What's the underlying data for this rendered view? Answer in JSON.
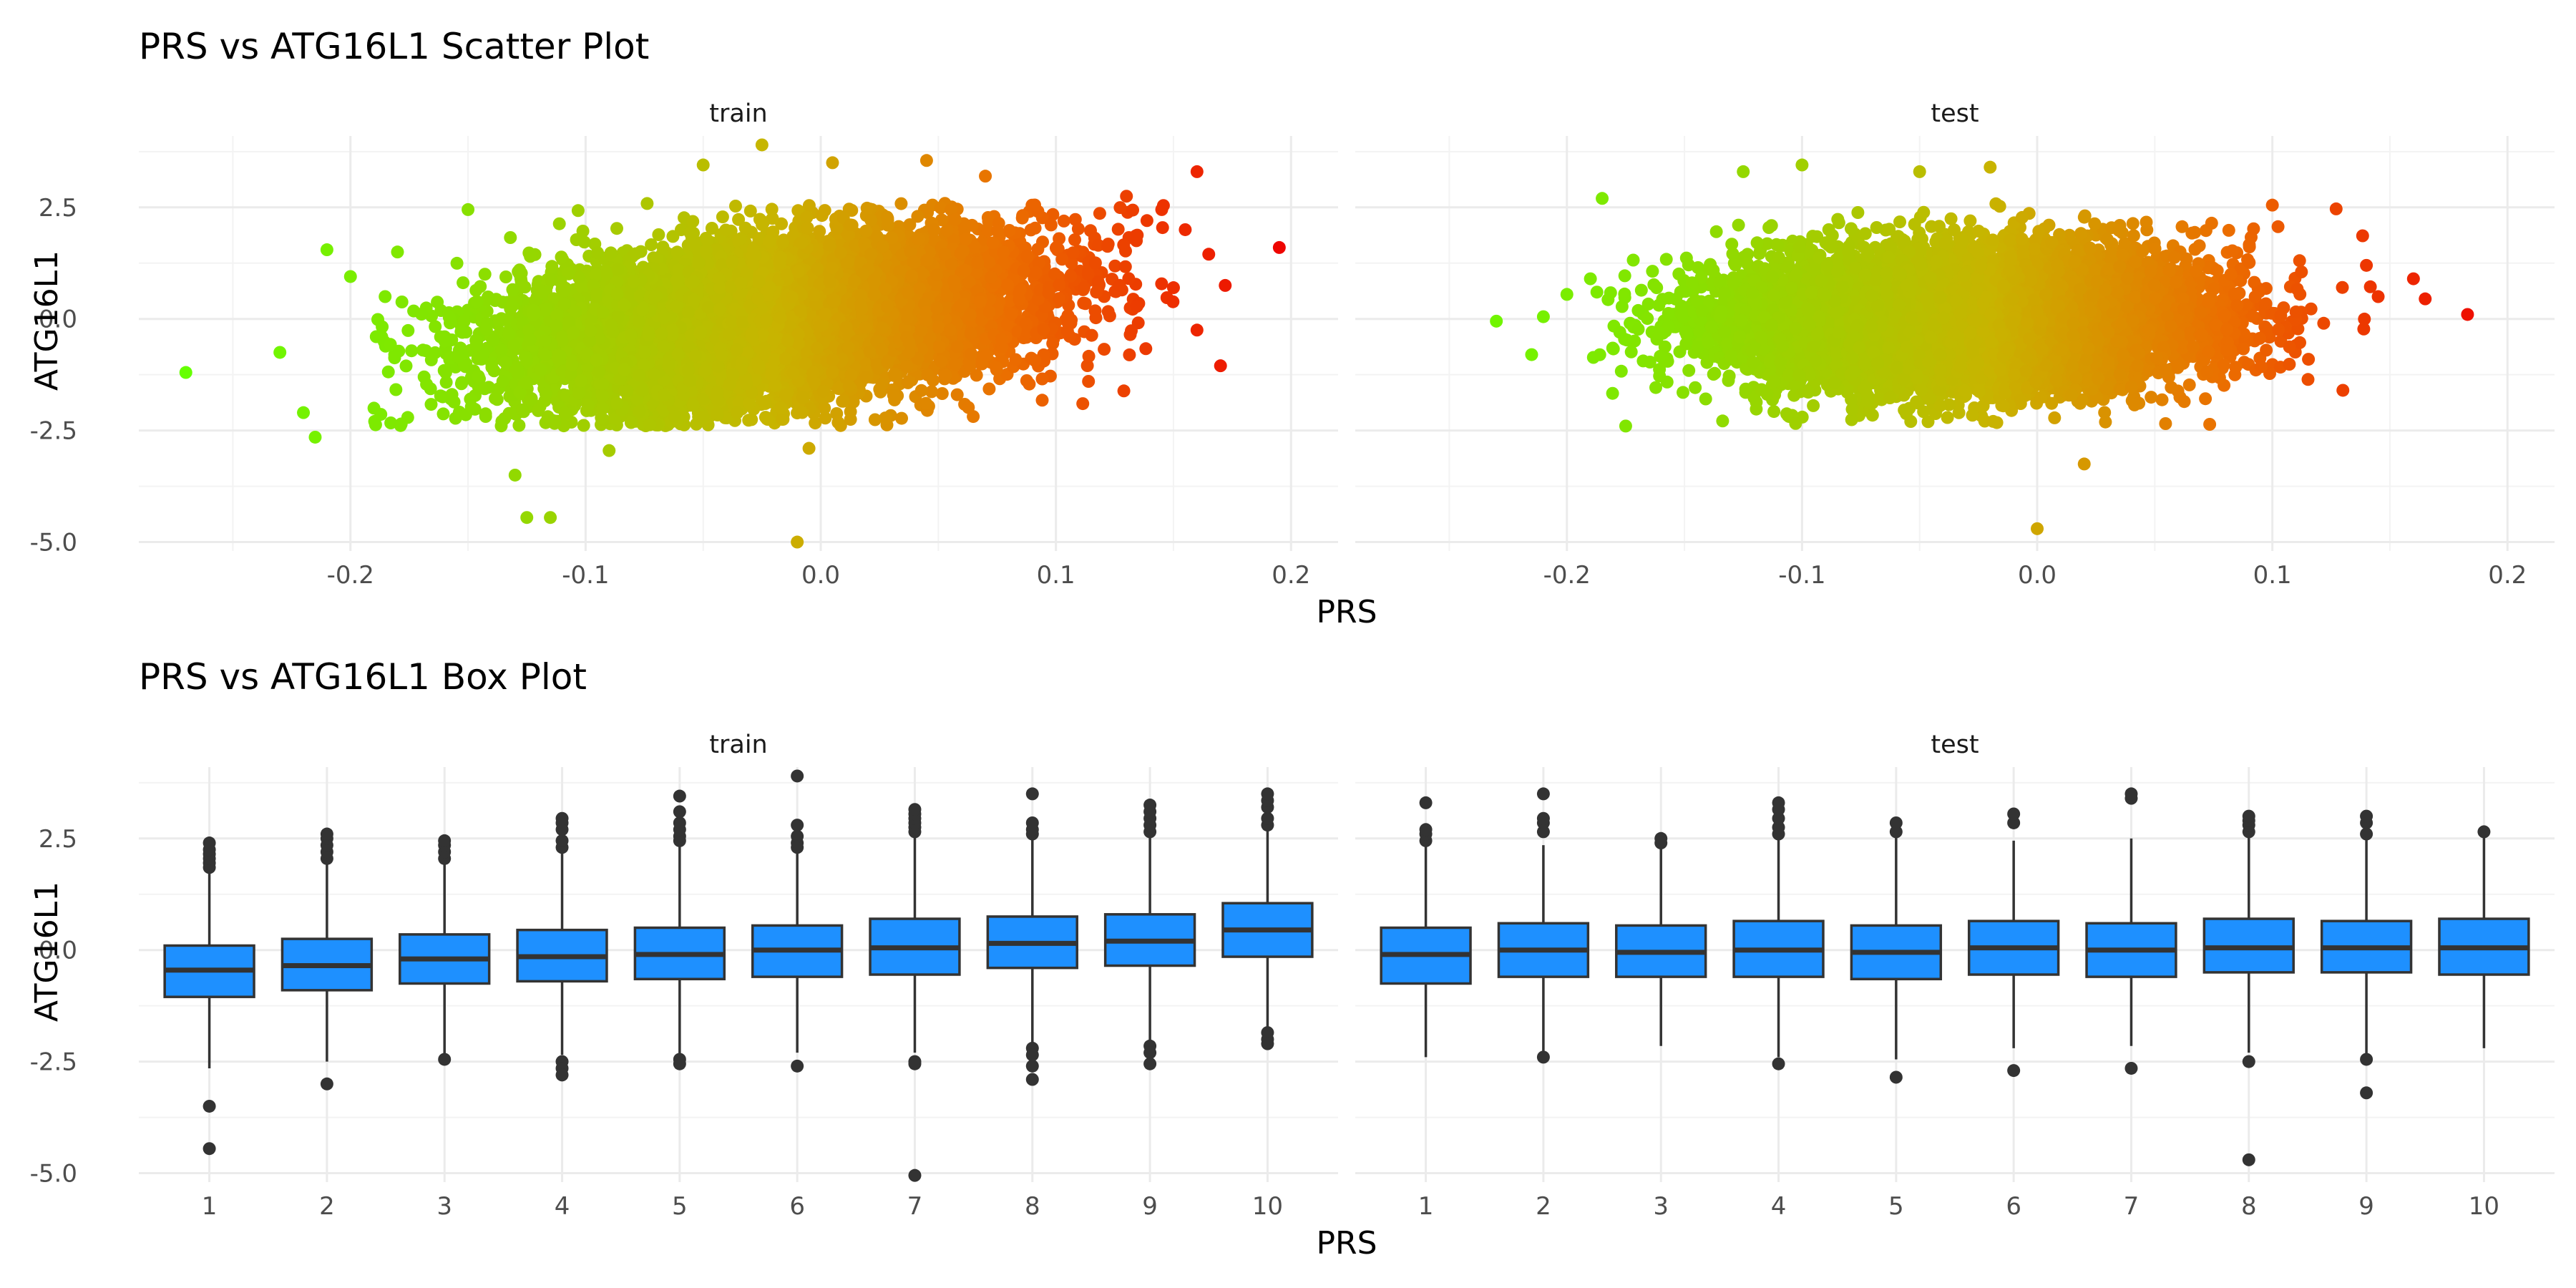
{
  "colors": {
    "box_fill": "#1E90FF",
    "box_line": "#333333",
    "low": "#66FF00",
    "mid": "#C8B400",
    "high": "#EE0000",
    "grid": "#EBEBEB"
  },
  "scatter": {
    "title": "PRS vs ATG16L1 Scatter Plot",
    "xlabel": "PRS",
    "ylabel": "ATG16L1"
  },
  "box": {
    "title": "PRS vs ATG16L1 Box Plot",
    "xlabel": "PRS",
    "ylabel": "ATG16L1"
  },
  "chart_data": [
    {
      "type": "scatter",
      "title": "PRS vs ATG16L1 Scatter Plot",
      "xlabel": "PRS",
      "ylabel": "ATG16L1",
      "xlim": [
        -0.29,
        0.22
      ],
      "ylim": [
        -5.2,
        4.1
      ],
      "x_ticks": [
        -0.2,
        -0.1,
        0.0,
        0.1,
        0.2
      ],
      "x_tick_labels": [
        "-0.2",
        "-0.1",
        "0.0",
        "0.1",
        "0.2"
      ],
      "y_ticks": [
        -5.0,
        -2.5,
        0.0,
        2.5
      ],
      "y_tick_labels": [
        "-5.0",
        "-2.5",
        "0.0",
        "2.5"
      ],
      "grid": true,
      "color_scale": "gradient of PRS from green (low) to red (high)",
      "panels": [
        {
          "name": "train",
          "core": {
            "x_mean": -0.02,
            "x_sd": 0.055,
            "slope": 5.5,
            "y_sd": 0.85
          },
          "points": [
            [
              -0.27,
              -1.2
            ],
            [
              -0.23,
              -0.75
            ],
            [
              -0.22,
              -2.1
            ],
            [
              -0.215,
              -2.65
            ],
            [
              -0.21,
              1.55
            ],
            [
              -0.2,
              0.95
            ],
            [
              -0.19,
              -2.0
            ],
            [
              -0.18,
              1.5
            ],
            [
              -0.15,
              2.45
            ],
            [
              -0.13,
              -3.5
            ],
            [
              -0.125,
              -4.45
            ],
            [
              -0.115,
              -4.45
            ],
            [
              -0.09,
              -2.95
            ],
            [
              -0.05,
              3.45
            ],
            [
              -0.025,
              3.9
            ],
            [
              -0.01,
              -5.0
            ],
            [
              -0.005,
              -2.9
            ],
            [
              0.005,
              3.5
            ],
            [
              0.045,
              3.55
            ],
            [
              0.07,
              3.2
            ],
            [
              0.13,
              2.75
            ],
            [
              0.145,
              2.45
            ],
            [
              0.15,
              0.7
            ],
            [
              0.16,
              3.3
            ],
            [
              0.165,
              1.45
            ],
            [
              0.17,
              -1.05
            ],
            [
              0.172,
              0.75
            ],
            [
              0.195,
              1.6
            ],
            [
              0.16,
              -0.25
            ],
            [
              0.155,
              2.0
            ]
          ]
        },
        {
          "name": "test",
          "core": {
            "x_mean": -0.03,
            "x_sd": 0.05,
            "slope": 0.5,
            "y_sd": 0.75
          },
          "points": [
            [
              -0.23,
              -0.05
            ],
            [
              -0.215,
              -0.8
            ],
            [
              -0.21,
              0.05
            ],
            [
              -0.2,
              0.55
            ],
            [
              -0.19,
              0.9
            ],
            [
              -0.185,
              2.7
            ],
            [
              -0.175,
              -2.4
            ],
            [
              -0.125,
              3.3
            ],
            [
              -0.1,
              3.45
            ],
            [
              -0.05,
              3.3
            ],
            [
              -0.02,
              3.4
            ],
            [
              0.0,
              -4.7
            ],
            [
              0.02,
              -3.25
            ],
            [
              0.1,
              2.55
            ],
            [
              0.13,
              -1.6
            ],
            [
              0.14,
              1.2
            ],
            [
              0.145,
              0.5
            ],
            [
              0.16,
              0.9
            ],
            [
              0.165,
              0.45
            ],
            [
              0.183,
              0.1
            ]
          ]
        }
      ]
    },
    {
      "type": "box",
      "title": "PRS vs ATG16L1 Box Plot",
      "xlabel": "PRS",
      "ylabel": "ATG16L1",
      "categories": [
        "1",
        "2",
        "3",
        "4",
        "5",
        "6",
        "7",
        "8",
        "9",
        "10"
      ],
      "ylim": [
        -5.2,
        4.1
      ],
      "y_ticks": [
        -5.0,
        -2.5,
        0.0,
        2.5
      ],
      "y_tick_labels": [
        "-5.0",
        "-2.5",
        "0.0",
        "2.5"
      ],
      "grid": true,
      "panels": [
        {
          "name": "train",
          "boxes": [
            {
              "q1": -1.05,
              "median": -0.45,
              "q3": 0.1,
              "lower": -2.65,
              "upper": 1.75,
              "outliers": [
                1.85,
                1.95,
                2.05,
                2.15,
                2.25,
                2.4,
                -3.5,
                -4.45
              ]
            },
            {
              "q1": -0.9,
              "median": -0.35,
              "q3": 0.25,
              "lower": -2.5,
              "upper": 1.95,
              "outliers": [
                2.05,
                2.2,
                2.35,
                2.5,
                2.6,
                -3.0
              ]
            },
            {
              "q1": -0.75,
              "median": -0.2,
              "q3": 0.35,
              "lower": -2.35,
              "upper": 2.0,
              "outliers": [
                2.05,
                2.2,
                2.35,
                2.45,
                -2.45
              ]
            },
            {
              "q1": -0.7,
              "median": -0.15,
              "q3": 0.45,
              "lower": -2.35,
              "upper": 2.2,
              "outliers": [
                2.3,
                2.45,
                2.7,
                2.85,
                2.95,
                -2.5,
                -2.65,
                -2.8
              ]
            },
            {
              "q1": -0.65,
              "median": -0.1,
              "q3": 0.5,
              "lower": -2.35,
              "upper": 2.35,
              "outliers": [
                2.45,
                2.55,
                2.7,
                2.85,
                3.1,
                3.45,
                -2.45,
                -2.55
              ]
            },
            {
              "q1": -0.6,
              "median": 0.0,
              "q3": 0.55,
              "lower": -2.3,
              "upper": 2.25,
              "outliers": [
                2.3,
                2.4,
                2.55,
                2.8,
                3.9,
                -2.6
              ]
            },
            {
              "q1": -0.55,
              "median": 0.05,
              "q3": 0.7,
              "lower": -2.3,
              "upper": 2.55,
              "outliers": [
                2.65,
                2.75,
                2.85,
                2.95,
                3.05,
                3.15,
                -2.5,
                -2.55,
                -5.05
              ]
            },
            {
              "q1": -0.4,
              "median": 0.15,
              "q3": 0.75,
              "lower": -2.1,
              "upper": 2.5,
              "outliers": [
                2.6,
                2.7,
                2.85,
                3.5,
                -2.2,
                -2.35,
                -2.6,
                -2.9
              ]
            },
            {
              "q1": -0.35,
              "median": 0.2,
              "q3": 0.8,
              "lower": -2.1,
              "upper": 2.55,
              "outliers": [
                2.65,
                2.8,
                2.95,
                3.1,
                3.25,
                -2.15,
                -2.3,
                -2.55
              ]
            },
            {
              "q1": -0.15,
              "median": 0.45,
              "q3": 1.05,
              "lower": -1.8,
              "upper": 2.7,
              "outliers": [
                2.8,
                2.95,
                3.2,
                3.35,
                3.5,
                -1.85,
                -2.0,
                -2.1
              ]
            }
          ]
        },
        {
          "name": "test",
          "boxes": [
            {
              "q1": -0.75,
              "median": -0.1,
              "q3": 0.5,
              "lower": -2.4,
              "upper": 2.35,
              "outliers": [
                2.45,
                2.6,
                2.7,
                3.3
              ]
            },
            {
              "q1": -0.6,
              "median": 0.0,
              "q3": 0.6,
              "lower": -2.3,
              "upper": 2.35,
              "outliers": [
                2.65,
                2.85,
                2.95,
                3.5,
                -2.4
              ]
            },
            {
              "q1": -0.6,
              "median": -0.05,
              "q3": 0.55,
              "lower": -2.15,
              "upper": 2.35,
              "outliers": [
                2.4,
                2.5
              ]
            },
            {
              "q1": -0.6,
              "median": 0.0,
              "q3": 0.65,
              "lower": -2.4,
              "upper": 2.5,
              "outliers": [
                2.6,
                2.75,
                2.95,
                3.15,
                3.3,
                -2.55
              ]
            },
            {
              "q1": -0.65,
              "median": -0.05,
              "q3": 0.55,
              "lower": -2.45,
              "upper": 2.55,
              "outliers": [
                2.65,
                2.85,
                -2.85
              ]
            },
            {
              "q1": -0.55,
              "median": 0.05,
              "q3": 0.65,
              "lower": -2.2,
              "upper": 2.45,
              "outliers": [
                2.85,
                3.05,
                -2.7
              ]
            },
            {
              "q1": -0.6,
              "median": 0.0,
              "q3": 0.6,
              "lower": -2.15,
              "upper": 2.5,
              "outliers": [
                3.4,
                3.5,
                -2.65
              ]
            },
            {
              "q1": -0.5,
              "median": 0.05,
              "q3": 0.7,
              "lower": -2.3,
              "upper": 2.55,
              "outliers": [
                2.65,
                2.8,
                2.9,
                3.0,
                -2.5,
                -4.7
              ]
            },
            {
              "q1": -0.5,
              "median": 0.05,
              "q3": 0.65,
              "lower": -2.4,
              "upper": 2.5,
              "outliers": [
                2.6,
                2.85,
                3.0,
                -2.45,
                -3.2
              ]
            },
            {
              "q1": -0.55,
              "median": 0.05,
              "q3": 0.7,
              "lower": -2.2,
              "upper": 2.6,
              "outliers": [
                2.65
              ]
            }
          ]
        }
      ]
    }
  ]
}
